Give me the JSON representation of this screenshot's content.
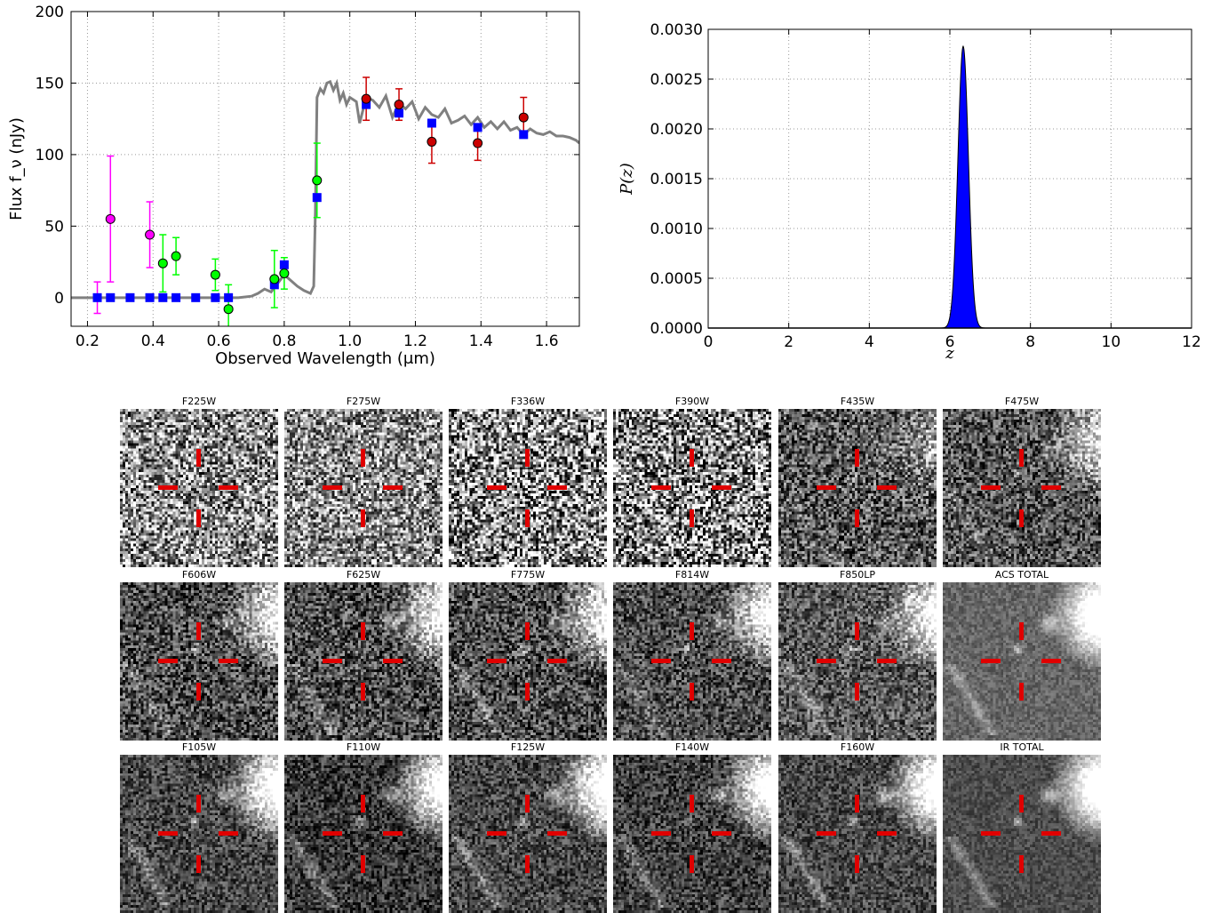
{
  "chart_data": [
    {
      "type": "scatter",
      "xlabel": "Observed Wavelength (μm)",
      "ylabel": "Flux f_ν (nJy)",
      "xlim": [
        0.15,
        1.7
      ],
      "ylim": [
        -20,
        200
      ],
      "xticks": [
        "0.2",
        "0.4",
        "0.6",
        "0.8",
        "1.0",
        "1.2",
        "1.4",
        "1.6"
      ],
      "yticks": [
        "0",
        "50",
        "100",
        "150",
        "200"
      ],
      "grid": true,
      "series": [
        {
          "kind": "line",
          "color": "#808080",
          "x": [
            0.15,
            0.3,
            0.5,
            0.66,
            0.7,
            0.72,
            0.74,
            0.76,
            0.78,
            0.8,
            0.82,
            0.84,
            0.86,
            0.88,
            0.89,
            0.895,
            0.9,
            0.91,
            0.92,
            0.93,
            0.94,
            0.95,
            0.96,
            0.97,
            0.98,
            0.99,
            1.0,
            1.02,
            1.03,
            1.05,
            1.07,
            1.09,
            1.11,
            1.13,
            1.15,
            1.17,
            1.19,
            1.21,
            1.23,
            1.25,
            1.27,
            1.29,
            1.31,
            1.33,
            1.35,
            1.37,
            1.39,
            1.41,
            1.43,
            1.45,
            1.47,
            1.49,
            1.51,
            1.53,
            1.55,
            1.57,
            1.59,
            1.61,
            1.63,
            1.65,
            1.67,
            1.69,
            1.7
          ],
          "y": [
            0,
            0,
            0,
            0,
            1,
            3,
            6,
            4,
            10,
            16,
            12,
            8,
            5,
            3,
            8,
            60,
            140,
            146,
            143,
            150,
            151,
            145,
            150,
            138,
            143,
            135,
            140,
            137,
            122,
            140,
            138,
            133,
            141,
            126,
            136,
            132,
            137,
            125,
            133,
            128,
            126,
            132,
            122,
            124,
            127,
            121,
            126,
            119,
            123,
            118,
            123,
            117,
            119,
            114,
            118,
            115,
            114,
            116,
            113,
            113,
            112,
            110,
            108
          ]
        },
        {
          "kind": "points",
          "color": "#ff00ff",
          "edge": "#000000",
          "x": [
            0.27,
            0.39
          ],
          "y": [
            55,
            44
          ],
          "err": [
            44,
            23
          ]
        },
        {
          "kind": "points",
          "color": "#00ff00",
          "edge": "#000000",
          "x": [
            0.43,
            0.47,
            0.59,
            0.63,
            0.77,
            0.8,
            0.9
          ],
          "y": [
            24,
            29,
            16,
            -8,
            13,
            17,
            82
          ],
          "err": [
            20,
            13,
            11,
            17,
            20,
            11,
            26
          ]
        },
        {
          "kind": "points",
          "color": "#cc0000",
          "edge": "#000000",
          "x": [
            1.05,
            1.15,
            1.25,
            1.39,
            1.53
          ],
          "y": [
            139,
            135,
            109,
            108,
            126
          ],
          "err": [
            15,
            11,
            15,
            12,
            14
          ]
        },
        {
          "kind": "squares",
          "color": "#0000ff",
          "x": [
            0.23,
            0.27,
            0.33,
            0.39,
            0.43,
            0.47,
            0.53,
            0.59,
            0.63,
            0.77,
            0.8,
            0.9,
            1.05,
            1.15,
            1.25,
            1.39,
            1.53
          ],
          "y": [
            0,
            0,
            0,
            0,
            0,
            0,
            0,
            0,
            0,
            9,
            23,
            70,
            135,
            129,
            122,
            119,
            114
          ]
        },
        {
          "kind": "errbar-only",
          "color": "#ff00ff",
          "x": [
            0.23
          ],
          "y": [
            0
          ],
          "err": [
            11
          ]
        }
      ]
    },
    {
      "type": "area",
      "xlabel": "z",
      "ylabel": "P(z)",
      "xlim": [
        0,
        12
      ],
      "ylim": [
        0,
        0.003
      ],
      "xticks": [
        "0",
        "2",
        "4",
        "6",
        "8",
        "10",
        "12"
      ],
      "yticks": [
        "0.0000",
        "0.0005",
        "0.0010",
        "0.0015",
        "0.0020",
        "0.0025",
        "0.0030"
      ],
      "grid": true,
      "peak_z": 6.33,
      "peak_p": 0.00283,
      "sigma": 0.13,
      "color": "#0000ff"
    }
  ],
  "stamps": {
    "row1": [
      "F225W",
      "F275W",
      "F336W",
      "F390W",
      "F435W",
      "F475W"
    ],
    "row2": [
      "F606W",
      "F625W",
      "F775W",
      "F814W",
      "F850LP",
      "ACS TOTAL"
    ],
    "row3": [
      "F105W",
      "F110W",
      "F125W",
      "F140W",
      "F160W",
      "IR TOTAL"
    ]
  }
}
